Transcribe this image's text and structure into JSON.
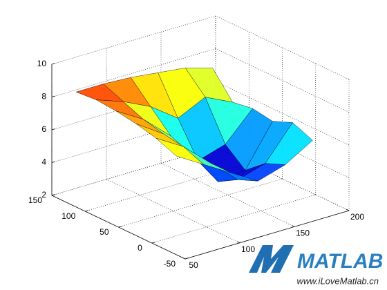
{
  "chart_data": {
    "type": "surface",
    "x": [
      60,
      85,
      110,
      135,
      160,
      185
    ],
    "y": [
      -20,
      10,
      40,
      70,
      100,
      130
    ],
    "z": [
      [
        7.5,
        6.5,
        5.5,
        4.5,
        5.0,
        6.0
      ],
      [
        8.0,
        7.0,
        5.5,
        4.0,
        4.5,
        6.5
      ],
      [
        8.3,
        7.2,
        5.5,
        3.3,
        3.5,
        6.0
      ],
      [
        8.5,
        7.5,
        6.0,
        4.0,
        4.5,
        6.2
      ],
      [
        8.6,
        8.0,
        7.2,
        6.0,
        6.8,
        6.0
      ],
      [
        8.5,
        8.5,
        8.4,
        8.2,
        8.0,
        7.5
      ]
    ],
    "xlim": [
      50,
      200
    ],
    "ylim": [
      -50,
      150
    ],
    "zlim": [
      2,
      10
    ],
    "xticks": [
      50,
      100,
      150,
      200
    ],
    "yticks": [
      -50,
      0,
      50,
      100,
      150
    ],
    "zticks": [
      2,
      4,
      6,
      8,
      10
    ],
    "colormap": "jet",
    "grid": true
  },
  "watermark": {
    "logo": "MATLAB",
    "url": "www.iLoveMatlab.cn"
  }
}
